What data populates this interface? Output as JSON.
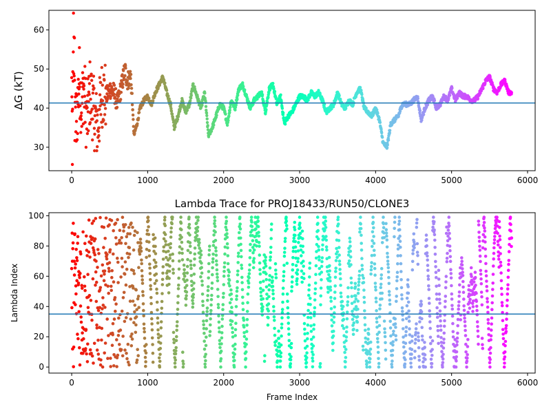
{
  "chart_data": [
    {
      "type": "scatter",
      "title": "",
      "xlabel": "",
      "ylabel": "ΔG (kT)",
      "xlim": [
        -300,
        6100
      ],
      "ylim": [
        24,
        65
      ],
      "xticks": [
        0,
        1000,
        2000,
        3000,
        4000,
        5000,
        6000
      ],
      "yticks": [
        30,
        40,
        50,
        60
      ],
      "hline": 41.3,
      "hline_color": "#1f77b4",
      "colormap": "rainbow",
      "grid": false,
      "legend": "none",
      "keypoints": [
        [
          0,
          45
        ],
        [
          10,
          30
        ],
        [
          20,
          60
        ],
        [
          40,
          48
        ],
        [
          60,
          35
        ],
        [
          100,
          48
        ],
        [
          130,
          40
        ],
        [
          160,
          46
        ],
        [
          200,
          36
        ],
        [
          240,
          44
        ],
        [
          300,
          38
        ],
        [
          340,
          35
        ],
        [
          400,
          44
        ],
        [
          460,
          43
        ],
        [
          500,
          45
        ],
        [
          560,
          44
        ],
        [
          600,
          41
        ],
        [
          650,
          45
        ],
        [
          700,
          50
        ],
        [
          730,
          47
        ],
        [
          780,
          48
        ],
        [
          820,
          33
        ],
        [
          860,
          36
        ],
        [
          900,
          40
        ],
        [
          950,
          42
        ],
        [
          1000,
          43
        ],
        [
          1050,
          41
        ],
        [
          1100,
          44
        ],
        [
          1150,
          46
        ],
        [
          1200,
          48
        ],
        [
          1250,
          44
        ],
        [
          1300,
          41
        ],
        [
          1350,
          35
        ],
        [
          1400,
          38
        ],
        [
          1450,
          42
        ],
        [
          1500,
          39
        ],
        [
          1550,
          41
        ],
        [
          1600,
          46
        ],
        [
          1650,
          43
        ],
        [
          1700,
          40
        ],
        [
          1750,
          44
        ],
        [
          1800,
          33
        ],
        [
          1850,
          35
        ],
        [
          1900,
          38
        ],
        [
          1950,
          41
        ],
        [
          2000,
          40
        ],
        [
          2050,
          36
        ],
        [
          2100,
          42
        ],
        [
          2150,
          40
        ],
        [
          2200,
          45
        ],
        [
          2250,
          46
        ],
        [
          2300,
          43
        ],
        [
          2350,
          40
        ],
        [
          2400,
          42
        ],
        [
          2450,
          43
        ],
        [
          2500,
          44
        ],
        [
          2550,
          39
        ],
        [
          2600,
          45
        ],
        [
          2650,
          46
        ],
        [
          2700,
          41
        ],
        [
          2750,
          43
        ],
        [
          2800,
          36
        ],
        [
          2850,
          38
        ],
        [
          2900,
          39
        ],
        [
          2950,
          41
        ],
        [
          3000,
          43
        ],
        [
          3050,
          43
        ],
        [
          3100,
          42
        ],
        [
          3150,
          44
        ],
        [
          3200,
          43
        ],
        [
          3250,
          44
        ],
        [
          3300,
          42
        ],
        [
          3350,
          39
        ],
        [
          3400,
          40
        ],
        [
          3450,
          41
        ],
        [
          3500,
          44
        ],
        [
          3550,
          41
        ],
        [
          3600,
          40
        ],
        [
          3650,
          42
        ],
        [
          3700,
          41
        ],
        [
          3750,
          44
        ],
        [
          3800,
          45
        ],
        [
          3850,
          40
        ],
        [
          3900,
          39
        ],
        [
          3950,
          38
        ],
        [
          4000,
          40
        ],
        [
          4050,
          37
        ],
        [
          4100,
          31
        ],
        [
          4150,
          30
        ],
        [
          4200,
          36
        ],
        [
          4250,
          37
        ],
        [
          4300,
          38
        ],
        [
          4350,
          41
        ],
        [
          4400,
          41
        ],
        [
          4450,
          41
        ],
        [
          4500,
          42
        ],
        [
          4550,
          43
        ],
        [
          4600,
          37
        ],
        [
          4650,
          40
        ],
        [
          4700,
          42
        ],
        [
          4750,
          43
        ],
        [
          4800,
          40
        ],
        [
          4850,
          41
        ],
        [
          4900,
          43
        ],
        [
          4950,
          42
        ],
        [
          5000,
          45
        ],
        [
          5050,
          42
        ],
        [
          5100,
          44
        ],
        [
          5150,
          43
        ],
        [
          5200,
          43
        ],
        [
          5250,
          42
        ],
        [
          5300,
          42
        ],
        [
          5350,
          43
        ],
        [
          5400,
          45
        ],
        [
          5450,
          47
        ],
        [
          5500,
          48
        ],
        [
          5550,
          45
        ],
        [
          5600,
          44
        ],
        [
          5650,
          46
        ],
        [
          5700,
          47
        ],
        [
          5750,
          44
        ],
        [
          5790,
          44
        ]
      ]
    },
    {
      "type": "scatter",
      "title": "Lambda Trace for PROJ18433/RUN50/CLONE3",
      "xlabel": "Frame Index",
      "ylabel": "Lambda Index",
      "xlim": [
        -300,
        6100
      ],
      "ylim": [
        -4,
        102
      ],
      "xticks": [
        0,
        1000,
        2000,
        3000,
        4000,
        5000,
        6000
      ],
      "yticks": [
        0,
        20,
        40,
        60,
        80,
        100
      ],
      "hline": 35,
      "hline_color": "#1f77b4",
      "colormap": "rainbow",
      "grid": false,
      "legend": "none",
      "value_range": [
        0,
        99
      ],
      "frame_range": [
        0,
        5790
      ]
    }
  ]
}
